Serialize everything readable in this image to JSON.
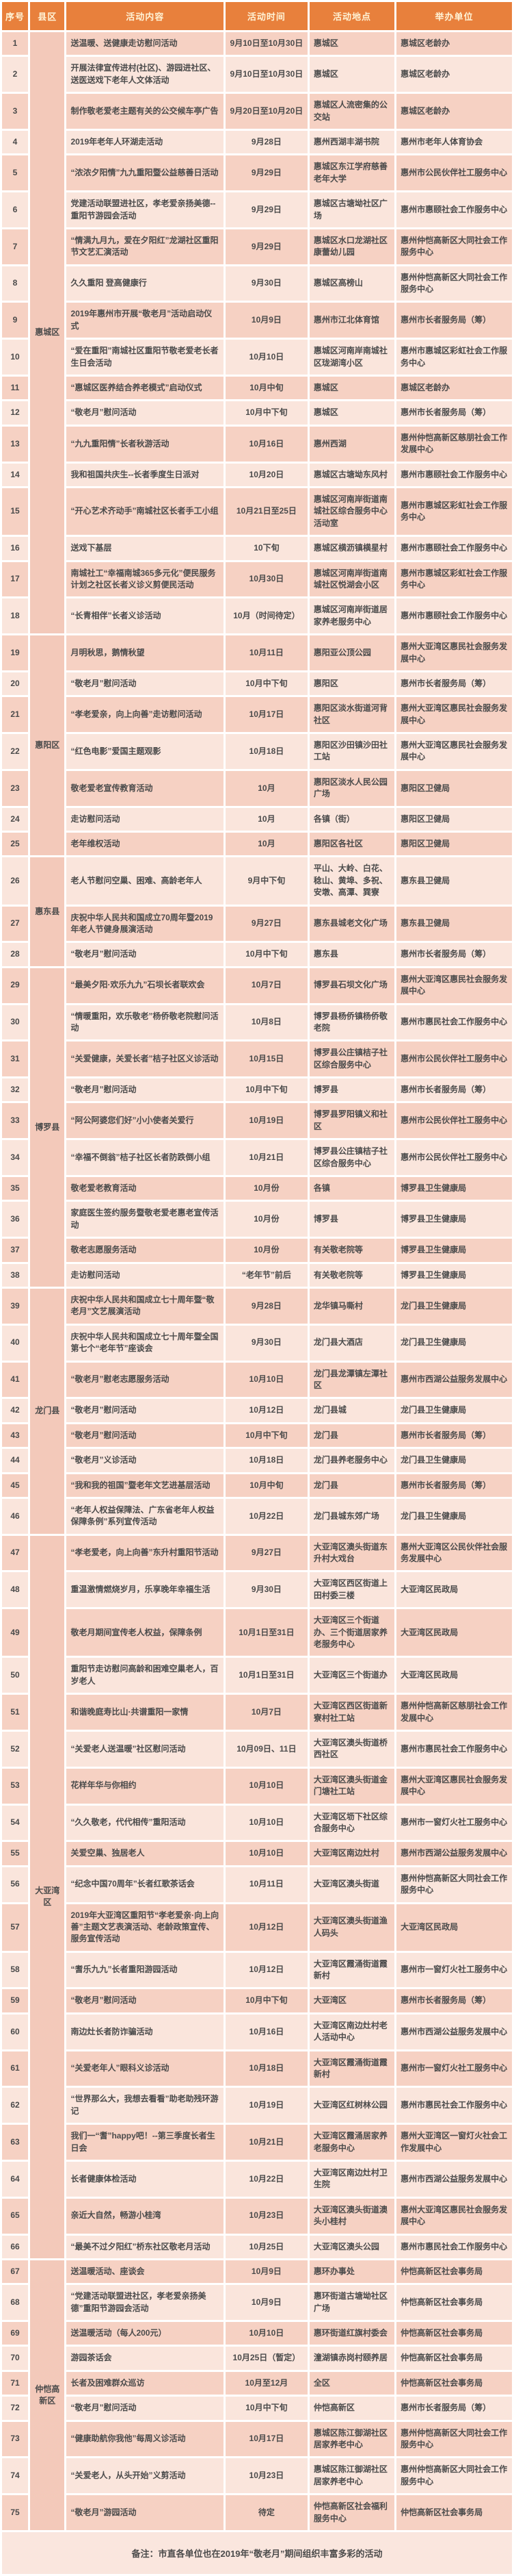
{
  "colors": {
    "header_bg": "#E8803C",
    "header_text": "#FFF3D6",
    "row_odd": "#F6D1C3",
    "row_even": "#FAE5DC",
    "district_bg": "#F3C9BA",
    "note_bg": "#FAE6DE",
    "body_text": "#4B4B4B"
  },
  "table": {
    "columns": [
      "序号",
      "县区",
      "活动内容",
      "活动时间",
      "活动地点",
      "举办单位"
    ],
    "groups": [
      {
        "district": "惠城区",
        "rows": [
          {
            "no": 1,
            "content": "送温暖、送健康走访慰问活动",
            "time": "9月10日至10月30日",
            "place": "惠城区",
            "org": "惠城区老龄办"
          },
          {
            "no": 2,
            "content": "开展法律宣传进村(社区)、游园进社区、送医送戏下老年人文体活动",
            "time": "9月10日至10月30日",
            "place": "惠城区",
            "org": "惠城区老龄办"
          },
          {
            "no": 3,
            "content": "制作敬老爱老主题有关的公交候车亭广告",
            "time": "9月20日至10月20日",
            "place": "惠城区人流密集的公交站",
            "org": "惠城区老龄办"
          },
          {
            "no": 4,
            "content": "2019年老年人环湖走活动",
            "time": "9月28日",
            "place": "惠州西湖丰湖书院",
            "org": "惠州市老年人体育协会"
          },
          {
            "no": 5,
            "content": "“浓浓夕阳情”九九重阳暨公益慈善日活动",
            "time": "9月29日",
            "place": "惠城区东江学府慈善老年大学",
            "org": "惠州市公民伙伴社工服务中心"
          },
          {
            "no": 6,
            "content": "党建活动联盟进社区，孝老爱亲扬美德--重阳节游园会活动",
            "time": "9月29日",
            "place": "惠城区古塘坳社区广场",
            "org": "惠州市惠颐社会工作服务中心"
          },
          {
            "no": 7,
            "content": "“情满九月九，爱在夕阳红”龙湖社区重阳节文艺汇演活动",
            "time": "9月29日",
            "place": "惠城区水口龙湖社区康蕾幼儿园",
            "org": "惠州仲恺高新区大同社会工作服务中心"
          },
          {
            "no": 8,
            "content": "久久重阳 登高健康行",
            "time": "9月30日",
            "place": "惠城区高榜山",
            "org": "惠州仲恺高新区大同社会工作服务中心"
          },
          {
            "no": 9,
            "content": "2019年惠州市开展“敬老月”活动启动仪式",
            "time": "10月9日",
            "place": "惠州市江北体育馆",
            "org": "惠州市长者服务局（筹）"
          },
          {
            "no": 10,
            "content": "“爱在重阳”南城社区重阳节敬老爱老长者生日会活动",
            "time": "10月10日",
            "place": "惠城区河南岸南城社区珑湖湾小区",
            "org": "惠州市惠城区彩虹社会工作服务中心"
          },
          {
            "no": 11,
            "content": "“惠城区医养结合养老模式”启动仪式",
            "time": "10月中旬",
            "place": "惠城区",
            "org": "惠城区老龄办"
          },
          {
            "no": 12,
            "content": "“敬老月”慰问活动",
            "time": "10月中下旬",
            "place": "惠城区",
            "org": "惠州市长者服务局（筹）"
          },
          {
            "no": 13,
            "content": "“九九重阳情”长者秋游活动",
            "time": "10月16日",
            "place": "惠州西湖",
            "org": "惠州仲恺高新区慈朋社会工作发展中心"
          },
          {
            "no": 14,
            "content": "我和祖国共庆生--长者季度生日派对",
            "time": "10月20日",
            "place": "惠城区古塘坳东风村",
            "org": "惠州市惠颐社会工作服务中心"
          },
          {
            "no": 15,
            "content": "“开心艺术齐动手”南城社区长者手工小组",
            "time": "10月21日至25日",
            "place": "惠城区河南岸街道南城社区综合服务中心活动室",
            "org": "惠州市惠城区彩虹社会工作服务中心"
          },
          {
            "no": 16,
            "content": "送戏下基层",
            "time": "10下旬",
            "place": "惠城区横沥镇横星村",
            "org": "惠州市惠颐社会工作服务中心"
          },
          {
            "no": 17,
            "content": "南城社工“幸福南城365多元化”便民服务计划之社区长者义诊义剪便民活动",
            "time": "10月30日",
            "place": "惠城区河南岸街道南城社区悦湖会小区",
            "org": "惠州市惠城区彩虹社会工作服务中心"
          },
          {
            "no": 18,
            "content": "“长青相伴”长者义诊活动",
            "time": "10月（时间待定）",
            "place": "惠城区河南岸街道居家养老服务中心",
            "org": "惠州市惠颐社会工作服务中心"
          }
        ]
      },
      {
        "district": "惠阳区",
        "rows": [
          {
            "no": 19,
            "content": "月明秋思，鹅情秋望",
            "time": "10月11日",
            "place": "惠阳亚公顶公园",
            "org": "惠州大亚湾区惠民社会服务发展中心"
          },
          {
            "no": 20,
            "content": "“敬老月”慰问活动",
            "time": "10月中下旬",
            "place": "惠阳区",
            "org": "惠州市长者服务局（筹）"
          },
          {
            "no": 21,
            "content": "“孝老爱亲，向上向善”走访慰问活动",
            "time": "10月17日",
            "place": "惠阳区淡水街道河背社区",
            "org": "惠州大亚湾区惠民社会服务发展中心"
          },
          {
            "no": 22,
            "content": "“红色电影”爱国主题观影",
            "time": "10月18日",
            "place": "惠阳区沙田镇沙田社工站",
            "org": "惠州大亚湾区惠民社会服务发展中心"
          },
          {
            "no": 23,
            "content": "敬老爱老宣传教育活动",
            "time": "10月",
            "place": "惠阳区淡水人民公园广场",
            "org": "惠阳区卫健局"
          },
          {
            "no": 24,
            "content": "走访慰问活动",
            "time": "10月",
            "place": "各镇（街）",
            "org": "惠阳区卫健局"
          },
          {
            "no": 25,
            "content": "老年维权活动",
            "time": "10月",
            "place": "惠阳区各社区",
            "org": "惠阳区卫健局"
          }
        ]
      },
      {
        "district": "惠东县",
        "rows": [
          {
            "no": 26,
            "content": "老人节慰问空巢、困难、高龄老年人",
            "time": "9月中下旬",
            "place": "平山、大岭、白花、稔山、黄埠、多祝、安墩、高潭、巽寮",
            "org": "惠东县卫健局"
          },
          {
            "no": 27,
            "content": "庆祝中华人民共和国成立70周年暨2019年老人节健身展演活动",
            "time": "9月27日",
            "place": "惠东县城老文化广场",
            "org": "惠东县卫健局"
          },
          {
            "no": 28,
            "content": "“敬老月”慰问活动",
            "time": "10月中下旬",
            "place": "惠东县",
            "org": "惠州市长者服务局（筹）"
          }
        ]
      },
      {
        "district": "博罗县",
        "rows": [
          {
            "no": 29,
            "content": "“最美夕阳·欢乐九九”石坝长者联欢会",
            "time": "10月7日",
            "place": "博罗县石坝文化广场",
            "org": "惠州大亚湾区惠民社会服务发展中心"
          },
          {
            "no": 30,
            "content": "“情暖重阳，欢乐敬老”杨侨敬老院慰问活动",
            "time": "10月8日",
            "place": "博罗县杨侨镇杨侨敬老院",
            "org": "惠州市惠民社会工作服务中心"
          },
          {
            "no": 31,
            "content": "“关爱健康，关爱长者”桔子社区义诊活动",
            "time": "10月15日",
            "place": "博罗县公庄镇桔子社区综合服务中心",
            "org": "惠州市公民伙伴社工服务中心"
          },
          {
            "no": 32,
            "content": "“敬老月”慰问活动",
            "time": "10月中下旬",
            "place": "博罗县",
            "org": "惠州市长者服务局（筹）"
          },
          {
            "no": 33,
            "content": "“阿公阿婆您们好”小小使者关爱行",
            "time": "10月19日",
            "place": "博罗县罗阳镇义和社区",
            "org": "惠州市公民伙伴社工服务中心"
          },
          {
            "no": 34,
            "content": "“幸福不倒翁”桔子社区长者防跌倒小组",
            "time": "10月21日",
            "place": "博罗县公庄镇桔子社区综合服务中心",
            "org": "惠州市公民伙伴社工服务中心"
          },
          {
            "no": 35,
            "content": "敬老爱老教育活动",
            "time": "10月份",
            "place": "各镇",
            "org": "博罗县卫生健康局"
          },
          {
            "no": 36,
            "content": "家庭医生签约服务暨敬老爱老惠老宣传活动",
            "time": "10月份",
            "place": "博罗县",
            "org": "博罗县卫生健康局"
          },
          {
            "no": 37,
            "content": "敬老志愿服务活动",
            "time": "10月份",
            "place": "有关敬老院等",
            "org": "博罗县卫生健康局"
          },
          {
            "no": 38,
            "content": "走访慰问活动",
            "time": "“老年节”前后",
            "place": "有关敬老院等",
            "org": "博罗县卫生健康局"
          }
        ]
      },
      {
        "district": "龙门县",
        "rows": [
          {
            "no": 39,
            "content": "庆祝中华人民共和国成立七十周年暨“敬老月”文艺展演活动",
            "time": "9月28日",
            "place": "龙华镇马嘶村",
            "org": "龙门县卫生健康局"
          },
          {
            "no": 40,
            "content": "庆祝中华人民共和国成立七十周年暨全国第七个“老年节”座谈会",
            "time": "9月30日",
            "place": "龙门县大酒店",
            "org": "龙门县卫生健康局"
          },
          {
            "no": 41,
            "content": "“敬老月”慰老志愿服务活动",
            "time": "10月10日",
            "place": "龙门县龙潭镇左潭社区",
            "org": "惠州市西湖公益服务发展中心"
          },
          {
            "no": 42,
            "content": "“敬老月”慰问活动",
            "time": "10月12日",
            "place": "龙门县城",
            "org": "龙门县卫生健康局"
          },
          {
            "no": 43,
            "content": "“敬老月”慰问活动",
            "time": "10月中下旬",
            "place": "龙门县",
            "org": "惠州市长者服务局（筹）"
          },
          {
            "no": 44,
            "content": "“敬老月”义诊活动",
            "time": "10月18日",
            "place": "龙门县养老服务中心",
            "org": "龙门县卫生健康局"
          },
          {
            "no": 45,
            "content": "“我和我的祖国”暨老年文艺进基层活动",
            "time": "10月中旬",
            "place": "龙门县",
            "org": "惠州市长者服务局（筹）"
          },
          {
            "no": 46,
            "content": "“老年人权益保障法、广东省老年人权益保障条例”系列宣传活动",
            "time": "10月22日",
            "place": "龙门县城东郊广场",
            "org": "龙门县卫生健康局"
          }
        ]
      },
      {
        "district": "大亚湾区",
        "rows": [
          {
            "no": 47,
            "content": "“孝老爱老，向上向善”东升村重阳节活动",
            "time": "9月27日",
            "place": "大亚湾区澳头街道东升村大戏台",
            "org": "惠州大亚湾区公民伙伴社会服务发展中心"
          },
          {
            "no": 48,
            "content": "重温激情燃烧岁月，乐享晚年幸福生活",
            "time": "9月30日",
            "place": "大亚湾区西区街道上田村委三楼",
            "org": "大亚湾区民政局"
          },
          {
            "no": 49,
            "content": "敬老月期间宣传老人权益，保障条例",
            "time": "10月1日至31日",
            "place": "大亚湾区三个街道办、三个街道居家养老服务中心",
            "org": "大亚湾区民政局"
          },
          {
            "no": 50,
            "content": "重阳节走访慰问高龄和困难空巢老人，百岁老人",
            "time": "10月1日至31日",
            "place": "大亚湾区三个街道办",
            "org": "大亚湾区民政局"
          },
          {
            "no": 51,
            "content": "和谐晚庭寿比山·共谱重阳一家情",
            "time": "10月7日",
            "place": "大亚湾区西区街道新寮村社工站",
            "org": "惠州仲恺高新区慈朋社会工作发展中心"
          },
          {
            "no": 52,
            "content": "“关爱老人送温暖”社区慰问活动",
            "time": "10月09日、11日",
            "place": "大亚湾区澳头街道桥西社区",
            "org": "惠州市惠民社会工作服务中心"
          },
          {
            "no": 53,
            "content": "花样年华与你相约",
            "time": "10月10日",
            "place": "大亚湾区澳头街道金门塘社工站",
            "org": "惠州大亚湾区惠民社会服务发展中心"
          },
          {
            "no": 54,
            "content": "“久久敬老，代代相传”重阳活动",
            "time": "10月10日",
            "place": "大亚湾区坜下社区综合服务中心",
            "org": "惠州市一窗灯火社工服务中心"
          },
          {
            "no": 55,
            "content": "关爱空巢、独居老人",
            "time": "10月10日",
            "place": "大亚湾区南边灶村",
            "org": "惠州市西湖公益服务发展中心"
          },
          {
            "no": 56,
            "content": "“纪念中国70周年”长者红歌茶话会",
            "time": "10月11日",
            "place": "大亚湾区澳头街道",
            "org": "惠州仲恺高新区大同社会工作服务中心"
          },
          {
            "no": 57,
            "content": "2019年大亚湾区重阳节“孝老爱亲·向上向善”主题文艺表演活动、老龄政策宣传、服务宣传活动",
            "time": "10月12日",
            "place": "大亚湾区澳头街道渔人码头",
            "org": "大亚湾区民政局"
          },
          {
            "no": 58,
            "content": "“耆乐九九”长者重阳游园活动",
            "time": "10月12日",
            "place": "大亚湾区霞涌街道霞新村",
            "org": "惠州市一窗灯火社工服务中心"
          },
          {
            "no": 59,
            "content": "“敬老月”慰问活动",
            "time": "10月中下旬",
            "place": "大亚湾区",
            "org": "惠州市长者服务局（筹）"
          },
          {
            "no": 60,
            "content": "南边灶长者防诈骗活动",
            "time": "10月16日",
            "place": "大亚湾区南边灶村老人活动中心",
            "org": "惠州市西湖公益服务发展中心"
          },
          {
            "no": 61,
            "content": "“关爱老年人”眼科义诊活动",
            "time": "10月18日",
            "place": "大亚湾区霞涌街道霞新村",
            "org": "惠州市一窗灯火社工服务中心"
          },
          {
            "no": 62,
            "content": "“世界那么大，我想去看看”助老助残环游记",
            "time": "10月19日",
            "place": "大亚湾区红树林公园",
            "org": "惠州市惠民社会工作服务中心"
          },
          {
            "no": 63,
            "content": "我们一“耆”happy吧！--第三季度长者生日会",
            "time": "10月21日",
            "place": "大亚湾区霞涌居家养老服务中心",
            "org": "惠州大亚湾区一窗灯火社会工作发展中心"
          },
          {
            "no": 64,
            "content": "长者健康体检活动",
            "time": "10月22日",
            "place": "大亚湾区南边灶村卫生院",
            "org": "惠州市西湖公益服务发展中心"
          },
          {
            "no": 65,
            "content": "亲近大自然，畅游小桂湾",
            "time": "10月23日",
            "place": "大亚湾区澳头街道澳头小桂村",
            "org": "惠州大亚湾区惠民社会服务发展中心"
          },
          {
            "no": 66,
            "content": "“最美不过夕阳红”桥东社区敬老月活动",
            "time": "10月25日",
            "place": "大亚湾区澳头公园",
            "org": "惠州市惠民社会工作服务中心"
          }
        ]
      },
      {
        "district": "仲恺高新区",
        "rows": [
          {
            "no": 67,
            "content": "送温暖活动、座谈会",
            "time": "10月9日",
            "place": "惠环办事处",
            "org": "仲恺高新区社会事务局"
          },
          {
            "no": 68,
            "content": "“党建活动联盟进社区，孝老爱亲扬美德”重阳节游园会活动",
            "time": "10月9日",
            "place": "惠环街道古塘坳社区广场",
            "org": "仲恺高新区社会事务局"
          },
          {
            "no": 69,
            "content": "送温暖活动（每人200元）",
            "time": "10月10日",
            "place": "惠环街道红旗村委会",
            "org": "仲恺高新区社会事务局"
          },
          {
            "no": 70,
            "content": "游园茶话会",
            "time": "10月25日（暂定）",
            "place": "潼湖镇赤岗村颐养居",
            "org": "仲恺高新区社会事务局"
          },
          {
            "no": 71,
            "content": "长者及困难群众巡访",
            "time": "10月至12月",
            "place": "全区",
            "org": "仲恺高新区社会事务局"
          },
          {
            "no": 72,
            "content": "“敬老月”慰问活动",
            "time": "10月中下旬",
            "place": "仲恺高新区",
            "org": "惠州市长者服务局（筹）"
          },
          {
            "no": 73,
            "content": "“健康助航你我他”每周义诊活动",
            "time": "10月17日",
            "place": "惠城区陈江御湖社区居家养老中心",
            "org": "惠州仲恺高新区大同社会工作服务中心"
          },
          {
            "no": 74,
            "content": "“关爱老人，从头开始”义剪活动",
            "time": "10月23日",
            "place": "惠城区陈江御湖社区居家养老中心",
            "org": "惠州仲恺高新区大同社会工作服务中心"
          },
          {
            "no": 75,
            "content": "“敬老月”游园活动",
            "time": "待定",
            "place": "仲恺高新区社会福利服务中心",
            "org": "仲恺高新区社会事务局"
          }
        ]
      }
    ],
    "note": "备注：市直各单位也在2019年“敬老月”期间组织丰富多彩的活动"
  }
}
